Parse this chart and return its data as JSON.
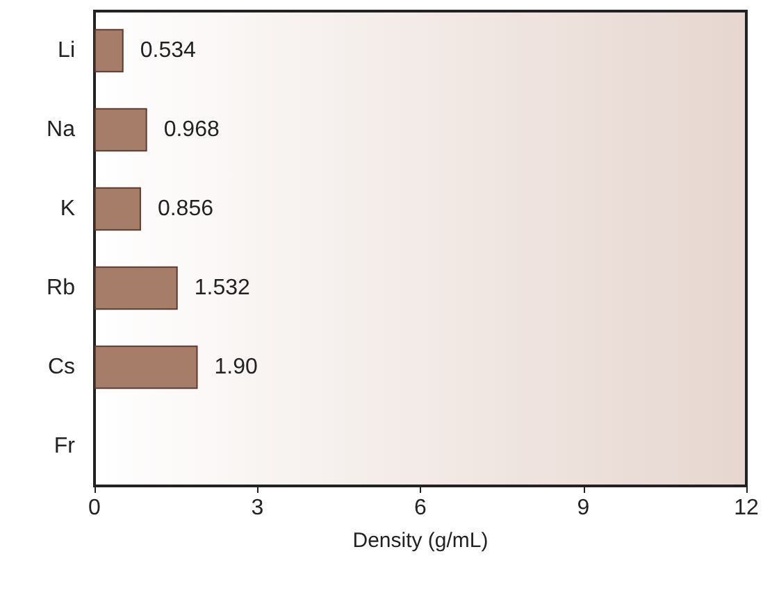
{
  "chart_data": {
    "type": "bar",
    "orientation": "horizontal",
    "categories": [
      "Li",
      "Na",
      "K",
      "Rb",
      "Cs",
      "Fr"
    ],
    "values": [
      0.534,
      0.968,
      0.856,
      1.532,
      1.9,
      null
    ],
    "value_labels": [
      "0.534",
      "0.968",
      "0.856",
      "1.532",
      "1.90",
      null
    ],
    "color": "#a67d68",
    "xlabel": "Density (g/mL)",
    "xlim": [
      0,
      12
    ],
    "xticks": [
      0,
      3,
      6,
      9,
      12
    ],
    "grid": false
  }
}
